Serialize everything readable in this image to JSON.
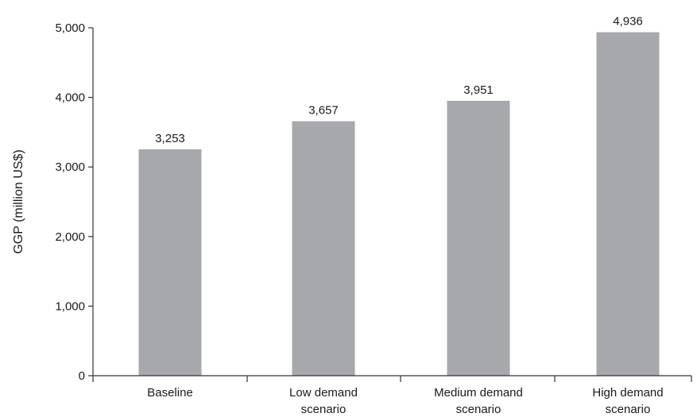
{
  "chart_data": {
    "type": "bar",
    "title": "",
    "xlabel": "",
    "ylabel": "GGP (million US$)",
    "categories": [
      [
        "Baseline"
      ],
      [
        "Low demand",
        "scenario"
      ],
      [
        "Medium demand",
        "scenario"
      ],
      [
        "High demand",
        "scenario"
      ]
    ],
    "values": [
      3253,
      3657,
      3951,
      4936
    ],
    "value_labels": [
      "3,253",
      "3,657",
      "3,951",
      "4,936"
    ],
    "ylim": [
      0,
      5000
    ],
    "yticks": [
      0,
      1000,
      2000,
      3000,
      4000,
      5000
    ],
    "ytick_labels": [
      "0",
      "1,000",
      "2,000",
      "3,000",
      "4,000",
      "5,000"
    ],
    "grid": false,
    "legend": "none",
    "bar_color": "#a7a8ab"
  }
}
